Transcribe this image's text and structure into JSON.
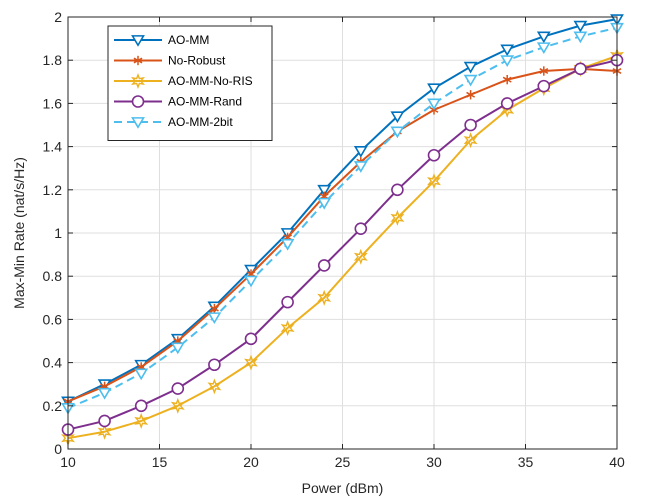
{
  "chart_data": {
    "type": "line",
    "title": "",
    "xlabel": "Power (dBm)",
    "ylabel": "Max-Min Rate (nat/s/Hz)",
    "xlim": [
      10,
      40
    ],
    "ylim": [
      0,
      2
    ],
    "xticks": [
      10,
      15,
      20,
      25,
      30,
      35,
      40
    ],
    "yticks": [
      0,
      0.2,
      0.4,
      0.6,
      0.8,
      1,
      1.2,
      1.4,
      1.6,
      1.8,
      2
    ],
    "xtick_labels": [
      "10",
      "15",
      "20",
      "25",
      "30",
      "35",
      "40"
    ],
    "ytick_labels": [
      "0",
      "0.2",
      "0.4",
      "0.6",
      "0.8",
      "1",
      "1.2",
      "1.4",
      "1.6",
      "1.8",
      "2"
    ],
    "grid": true,
    "legend_position": "top-left",
    "x": [
      10,
      12,
      14,
      16,
      18,
      20,
      22,
      24,
      26,
      28,
      30,
      32,
      34,
      36,
      38,
      40
    ],
    "series": [
      {
        "name": "AO-MM",
        "color": "#0072bd",
        "marker": "triangle-down",
        "dash": "solid",
        "values": [
          0.22,
          0.3,
          0.39,
          0.51,
          0.66,
          0.83,
          1.0,
          1.2,
          1.38,
          1.54,
          1.67,
          1.77,
          1.85,
          1.91,
          1.96,
          1.99
        ]
      },
      {
        "name": "No-Robust",
        "color": "#d95319",
        "marker": "asterisk",
        "dash": "solid",
        "values": [
          0.22,
          0.29,
          0.38,
          0.5,
          0.65,
          0.81,
          0.98,
          1.17,
          1.33,
          1.47,
          1.57,
          1.64,
          1.71,
          1.75,
          1.76,
          1.75
        ]
      },
      {
        "name": "AO-MM-No-RIS",
        "color": "#edb120",
        "marker": "hexagram",
        "dash": "solid",
        "values": [
          0.05,
          0.08,
          0.13,
          0.2,
          0.29,
          0.4,
          0.56,
          0.7,
          0.89,
          1.07,
          1.24,
          1.43,
          1.57,
          1.67,
          1.76,
          1.82
        ]
      },
      {
        "name": "AO-MM-Rand",
        "color": "#7e2f8e",
        "marker": "circle",
        "dash": "solid",
        "values": [
          0.09,
          0.13,
          0.2,
          0.28,
          0.39,
          0.51,
          0.68,
          0.85,
          1.02,
          1.2,
          1.36,
          1.5,
          1.6,
          1.68,
          1.76,
          1.8
        ]
      },
      {
        "name": "AO-MM-2bit",
        "color": "#4dbeee",
        "marker": "triangle-down",
        "dash": "dashed",
        "values": [
          0.19,
          0.26,
          0.35,
          0.47,
          0.61,
          0.78,
          0.95,
          1.14,
          1.31,
          1.47,
          1.6,
          1.71,
          1.8,
          1.86,
          1.91,
          1.95
        ]
      }
    ]
  }
}
